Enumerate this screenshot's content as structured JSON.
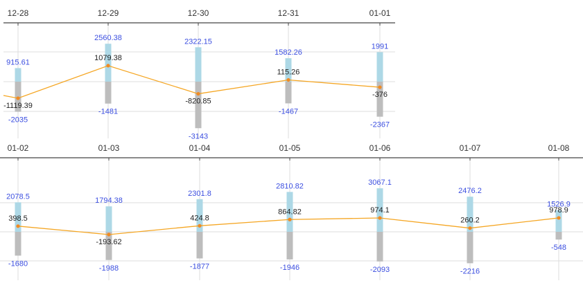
{
  "colors": {
    "positive_bar": "#add8e6",
    "negative_bar": "#bdbdbd",
    "line": "#f5a623",
    "marker": "#f08a24",
    "axis": "#444444",
    "grid": "#dddddd",
    "value_text": "#3b4ee0",
    "net_text": "#222222"
  },
  "chart_data": [
    {
      "type": "bar",
      "combined_with": "line",
      "categories": [
        "12-28",
        "12-29",
        "12-30",
        "12-31",
        "01-01"
      ],
      "series": [
        {
          "values": [
            915.61,
            2560.38,
            2322.15,
            1582.26,
            1991
          ]
        },
        {
          "values": [
            -2035,
            -1481,
            -3143,
            -1467,
            -2367
          ]
        },
        {
          "type": "line",
          "values": [
            -1119.39,
            1079.38,
            -820.85,
            115.26,
            -376
          ]
        }
      ],
      "grid": true,
      "axis_position": "top"
    },
    {
      "type": "bar",
      "combined_with": "line",
      "categories": [
        "01-02",
        "01-03",
        "01-04",
        "01-05",
        "01-06",
        "01-07",
        "01-08"
      ],
      "series": [
        {
          "values": [
            2078.5,
            1794.38,
            2301.8,
            2810.82,
            3067.1,
            2476.2,
            1526.9
          ]
        },
        {
          "values": [
            -1680,
            -1988,
            -1877,
            -1946,
            -2093,
            -2216,
            -548
          ]
        },
        {
          "type": "line",
          "values": [
            398.5,
            -193.62,
            424.8,
            864.82,
            974.1,
            260.2,
            978.9
          ]
        }
      ],
      "grid": true,
      "axis_position": "top"
    }
  ]
}
